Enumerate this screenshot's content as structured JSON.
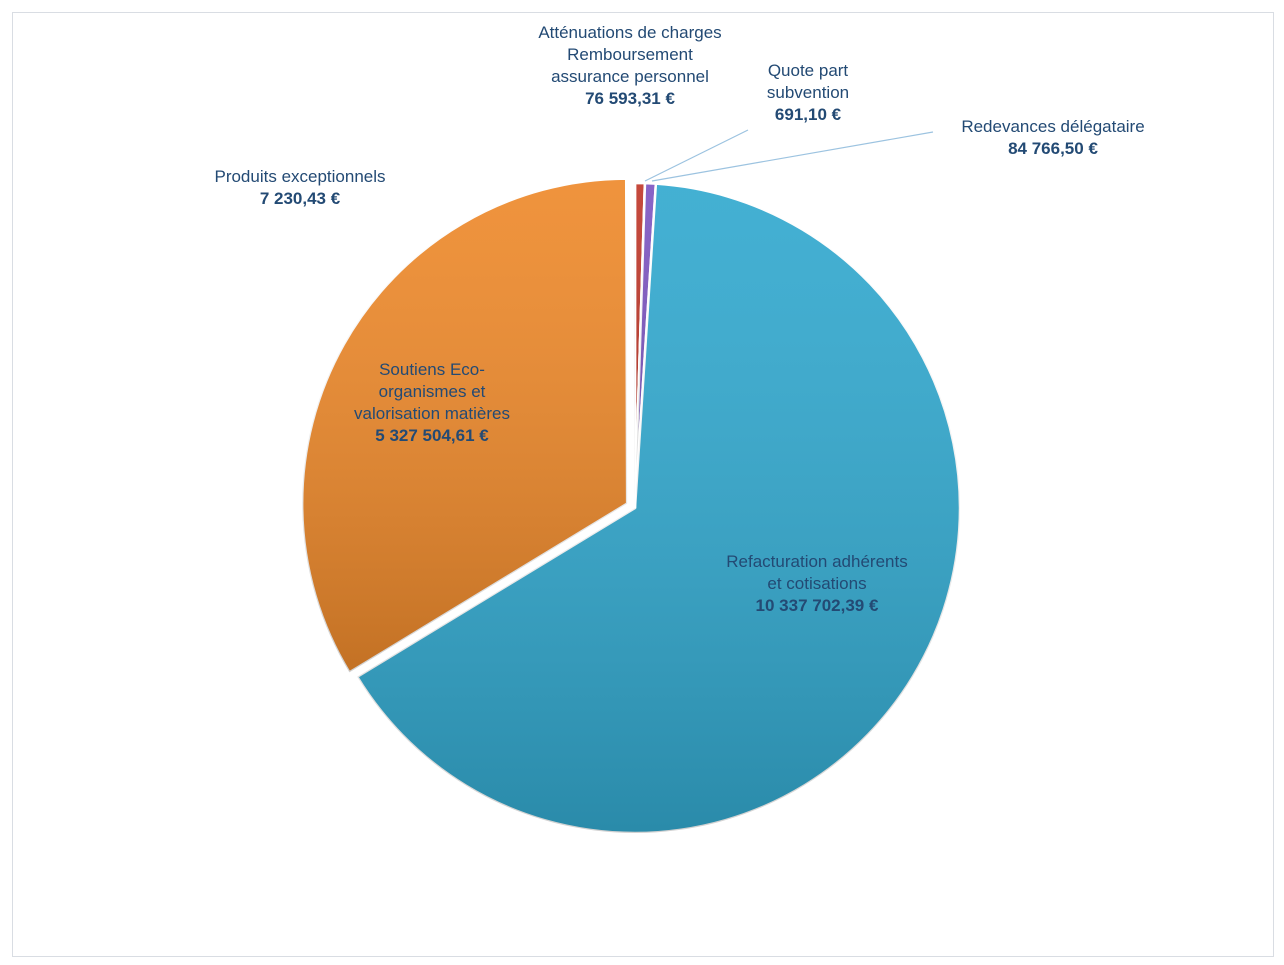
{
  "chart_data": {
    "type": "pie",
    "categories": [
      "Atténuations de charges Remboursement assurance personnel",
      "Quote part subvention",
      "Redevances délégataire",
      "Refacturation adhérents et cotisations",
      "Soutiens Eco-organismes et valorisation matières",
      "Produits exceptionnels"
    ],
    "values": [
      76593.31,
      691.1,
      84766.5,
      10337702.39,
      5327504.61,
      7230.43
    ],
    "value_labels": [
      "76 593,31 €",
      "691,10 €",
      "84 766,50 €",
      "10 337 702,39 €",
      "5 327 504,61 €",
      "7 230,43 €"
    ],
    "colors": [
      "#c0392b",
      "#6aa84f",
      "#7e57c2",
      "#33a9cf",
      "#ee8a2c",
      "#9e9e9e"
    ]
  }
}
